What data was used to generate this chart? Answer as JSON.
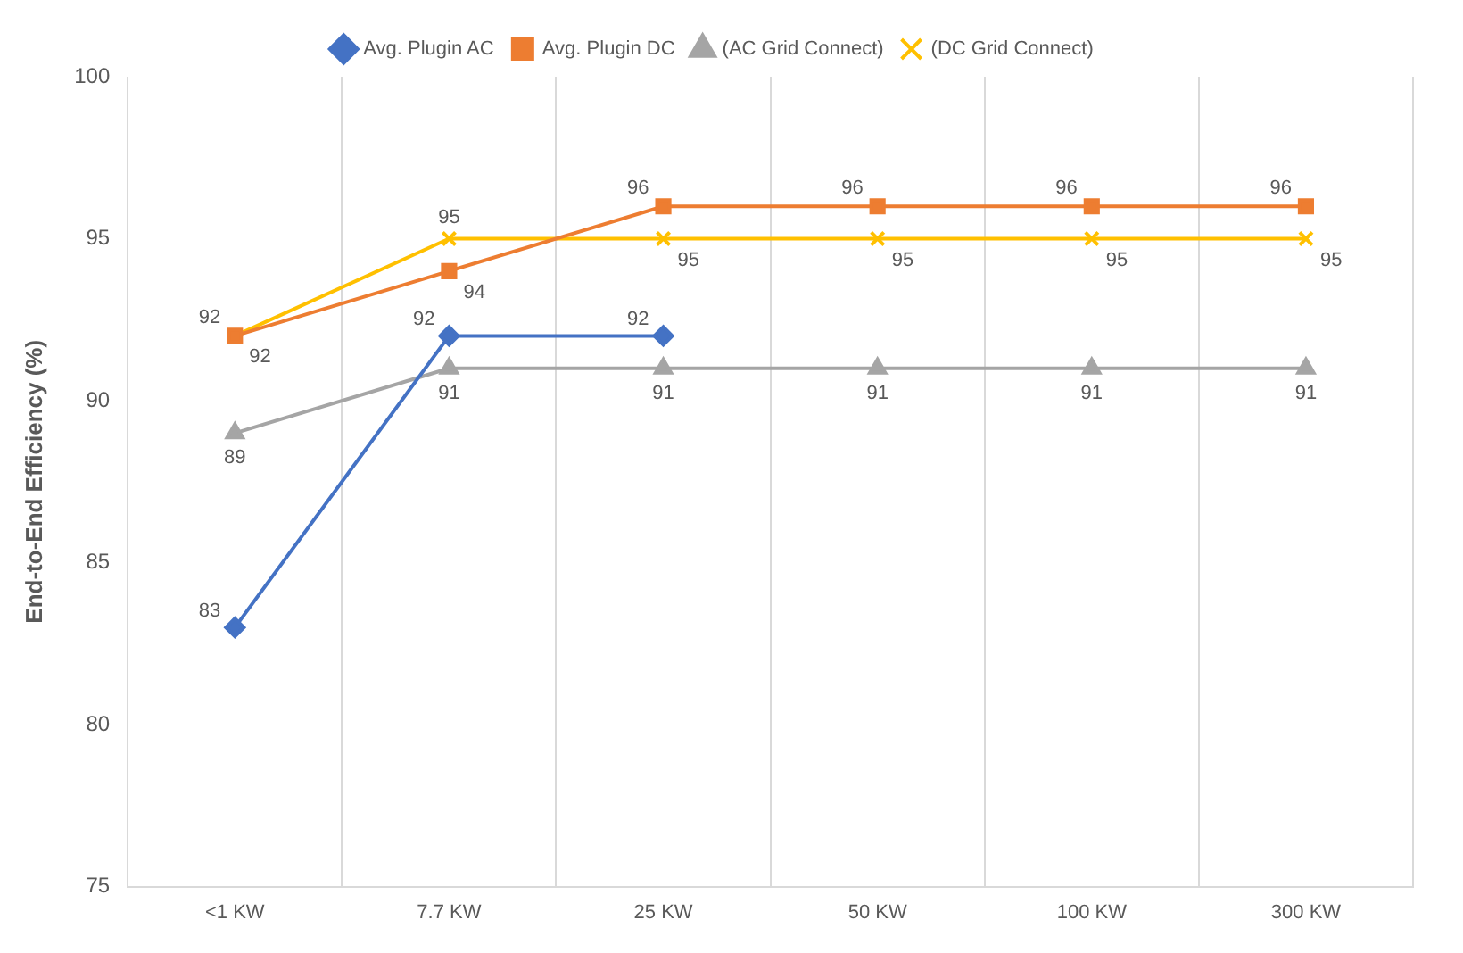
{
  "chart_data": {
    "type": "line",
    "ylabel": "End-to-End Efficiency (%)",
    "categories": [
      "<1 KW",
      "7.7 KW",
      "25 KW",
      "50 KW",
      "100 KW",
      "300 KW"
    ],
    "series": [
      {
        "name": "Avg. Plugin AC",
        "color": "#4472c4",
        "marker": "diamond",
        "values": [
          83,
          92,
          92,
          null,
          null,
          null
        ]
      },
      {
        "name": "Avg. Plugin DC",
        "color": "#ed7d31",
        "marker": "square",
        "values": [
          92,
          94,
          96,
          96,
          96,
          96
        ]
      },
      {
        "name": "(AC Grid Connect)",
        "color": "#a5a5a5",
        "marker": "triangle",
        "values": [
          89,
          91,
          91,
          91,
          91,
          91
        ]
      },
      {
        "name": "(DC Grid Connect)",
        "color": "#ffc000",
        "marker": "cross",
        "values": [
          92,
          95,
          95,
          95,
          95,
          95
        ]
      }
    ],
    "ylim": [
      75,
      100
    ],
    "yticks": [
      75,
      80,
      85,
      90,
      95,
      100
    ],
    "grid": "x",
    "legend": "top",
    "data_labels": true
  }
}
